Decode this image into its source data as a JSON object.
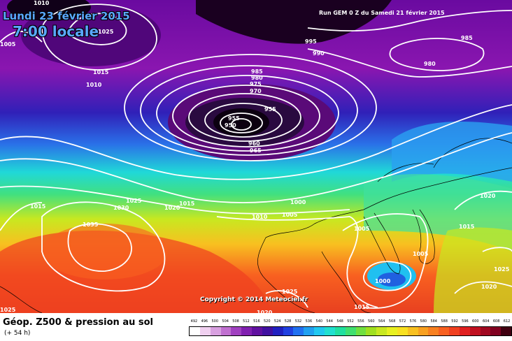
{
  "header": {
    "date": "Lundi 23 février 2015",
    "time": "7:00 locale",
    "run": "Run GEM 0 Z du Samedi 21 février 2015"
  },
  "copyright": "Copyright © 2014 Meteociel.fr",
  "footer": {
    "title": "Géop. Z500 & pression au sol",
    "subtitle": "(+ 54 h)"
  },
  "colorscale": {
    "values": [
      492,
      496,
      500,
      504,
      508,
      512,
      516,
      520,
      524,
      528,
      532,
      536,
      540,
      544,
      548,
      552,
      556,
      560,
      564,
      568,
      572,
      576,
      580,
      584,
      588,
      592,
      596,
      600,
      604,
      608,
      612
    ],
    "colors": [
      "#ffffff",
      "#f0d0f0",
      "#d8a0e0",
      "#c070d0",
      "#a040c0",
      "#8020b0",
      "#6010a0",
      "#4010a0",
      "#2020c0",
      "#2040e0",
      "#2070f0",
      "#20a0f0",
      "#20c8f0",
      "#20e0d0",
      "#20e0a0",
      "#40e070",
      "#70e040",
      "#a0e020",
      "#c8e820",
      "#e8f020",
      "#f8e020",
      "#f8c020",
      "#f8a020",
      "#f88020",
      "#f86020",
      "#f04020",
      "#e02020",
      "#c01020",
      "#a00820",
      "#800020",
      "#400010"
    ]
  },
  "isobar_labels": [
    "1010",
    "1005",
    "1025",
    "995",
    "990",
    "985",
    "980",
    "1015",
    "1010",
    "985",
    "980",
    "975",
    "970",
    "955",
    "955",
    "950",
    "960",
    "965",
    "1015",
    "1030",
    "1025",
    "1020",
    "1015",
    "1000",
    "1010",
    "1005",
    "1020",
    "1035",
    "1005",
    "1015",
    "1005",
    "1025",
    "1000",
    "1020",
    "1025",
    "1020",
    "1015",
    "1025"
  ]
}
